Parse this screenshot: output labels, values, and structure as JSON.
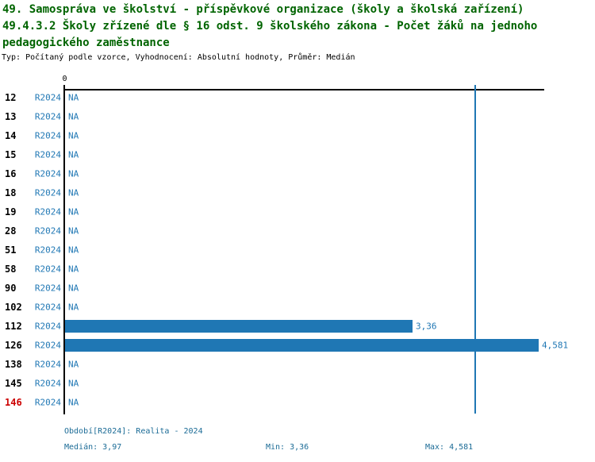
{
  "title": {
    "line1": "49. Samospráva ve školství - příspěvkové organizace (školy a školská zařízení)",
    "line2": "49.4.3.2 Školy zřízené dle § 16 odst. 9 školského zákona - Počet žáků na jednoho",
    "line3": "pedagogického zaměstnance"
  },
  "subtitle": "Typ: Počítaný podle vzorce, Vyhodnocení: Absolutní hodnoty, Průměr: Medián",
  "axis": {
    "origin_label": "0"
  },
  "chart_data": {
    "type": "bar",
    "orientation": "horizontal",
    "title": "49.4.3.2 Školy zřízené dle § 16 odst. 9 školského zákona - Počet žáků na jednoho pedagogického zaměstnance",
    "categories": [
      "12",
      "13",
      "14",
      "15",
      "16",
      "18",
      "19",
      "28",
      "51",
      "58",
      "90",
      "102",
      "112",
      "126",
      "138",
      "145",
      "146"
    ],
    "series": [
      {
        "name": "R2024",
        "values": [
          null,
          null,
          null,
          null,
          null,
          null,
          null,
          null,
          null,
          null,
          null,
          null,
          3.36,
          4.581,
          null,
          null,
          null
        ],
        "value_labels": [
          "NA",
          "NA",
          "NA",
          "NA",
          "NA",
          "NA",
          "NA",
          "NA",
          "NA",
          "NA",
          "NA",
          "NA",
          "3,36",
          "4,581",
          "NA",
          "NA",
          "NA"
        ]
      }
    ],
    "xlim": [
      0,
      4.64
    ],
    "grid": false,
    "median_line_value": 3.97,
    "stats": {
      "median": 3.97,
      "min": 3.36,
      "max": 4.581
    },
    "period": "Realita - 2024"
  },
  "rows": [
    {
      "category": "12",
      "period": "R2024",
      "value": null,
      "display": "NA",
      "highlight": false
    },
    {
      "category": "13",
      "period": "R2024",
      "value": null,
      "display": "NA",
      "highlight": false
    },
    {
      "category": "14",
      "period": "R2024",
      "value": null,
      "display": "NA",
      "highlight": false
    },
    {
      "category": "15",
      "period": "R2024",
      "value": null,
      "display": "NA",
      "highlight": false
    },
    {
      "category": "16",
      "period": "R2024",
      "value": null,
      "display": "NA",
      "highlight": false
    },
    {
      "category": "18",
      "period": "R2024",
      "value": null,
      "display": "NA",
      "highlight": false
    },
    {
      "category": "19",
      "period": "R2024",
      "value": null,
      "display": "NA",
      "highlight": false
    },
    {
      "category": "28",
      "period": "R2024",
      "value": null,
      "display": "NA",
      "highlight": false
    },
    {
      "category": "51",
      "period": "R2024",
      "value": null,
      "display": "NA",
      "highlight": false
    },
    {
      "category": "58",
      "period": "R2024",
      "value": null,
      "display": "NA",
      "highlight": false
    },
    {
      "category": "90",
      "period": "R2024",
      "value": null,
      "display": "NA",
      "highlight": false
    },
    {
      "category": "102",
      "period": "R2024",
      "value": null,
      "display": "NA",
      "highlight": false
    },
    {
      "category": "112",
      "period": "R2024",
      "value": 3.36,
      "display": "3,36",
      "highlight": false
    },
    {
      "category": "126",
      "period": "R2024",
      "value": 4.581,
      "display": "4,581",
      "highlight": false
    },
    {
      "category": "138",
      "period": "R2024",
      "value": null,
      "display": "NA",
      "highlight": false
    },
    {
      "category": "145",
      "period": "R2024",
      "value": null,
      "display": "NA",
      "highlight": false
    },
    {
      "category": "146",
      "period": "R2024",
      "value": null,
      "display": "NA",
      "highlight": true
    }
  ],
  "footer": {
    "period_label": "Období[R2024]: Realita - 2024",
    "median_label": "Medián: 3,97",
    "min_label": "Min: 3,36",
    "max_label": "Max: 4,581"
  },
  "colors": {
    "bar": "#1F77B4",
    "median_line": "#1F77B4",
    "title": "#006400",
    "subtitle": "#000000",
    "row_number": "#000000",
    "row_number_highlight": "#CC0000",
    "chart_text": "#1F77B4",
    "legend_text": "#1B6B96",
    "axis": "#000000"
  }
}
